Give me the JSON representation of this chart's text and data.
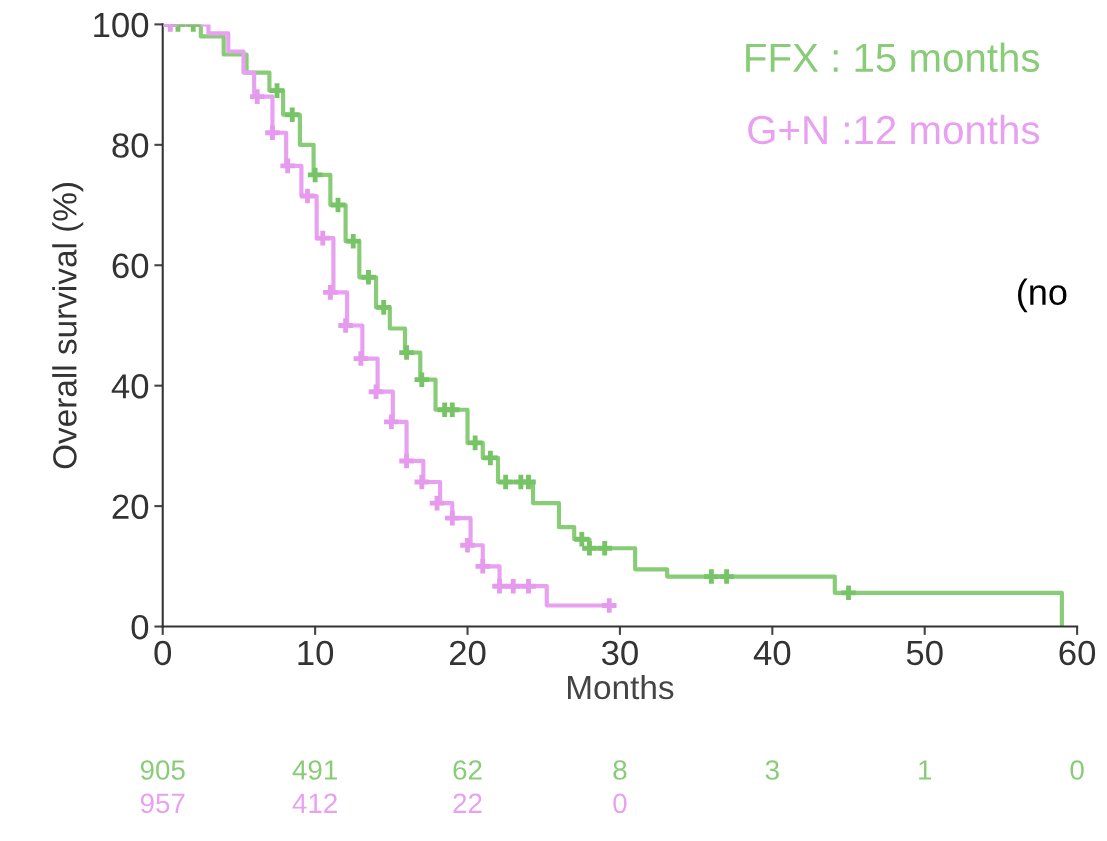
{
  "chart_data": {
    "type": "step",
    "xlabel": "Months",
    "ylabel": "Overall survival (%)",
    "xlim": [
      0,
      60
    ],
    "xticks": [
      0,
      10,
      20,
      30,
      40,
      50,
      60
    ],
    "ylim": [
      0,
      100
    ],
    "yticks": [
      0,
      20,
      40,
      60,
      80,
      100
    ],
    "grid": false,
    "legend": "top right",
    "series": [
      {
        "name": "FFX : 15 months",
        "color": "#88cc77",
        "marker": "none",
        "x": [
          0,
          2.5,
          4,
          5.5,
          7,
          7.9,
          9,
          9.9,
          11,
          12,
          12.9,
          14,
          14.9,
          15.9,
          16.9,
          17.9,
          20,
          21,
          22,
          24.3,
          26,
          27,
          28,
          31,
          33.1,
          44.1,
          59
        ],
        "values": [
          100,
          98,
          95,
          92,
          89,
          85,
          80,
          75,
          70,
          64,
          58,
          53,
          49.5,
          45.5,
          41,
          36,
          30.5,
          28,
          24,
          20.5,
          16.5,
          14.5,
          13,
          9.5,
          8.3,
          5.6,
          0
        ]
      },
      {
        "name": "G+N :12 months",
        "color": "#e8a0f0",
        "marker": "none",
        "x": [
          0,
          3,
          4.3,
          5.3,
          6,
          7.2,
          8.1,
          9.1,
          10.1,
          11.2,
          12.1,
          13.1,
          14.1,
          15.1,
          16,
          17.1,
          18.2,
          19,
          20.2,
          21,
          22.1,
          25.2,
          29.3
        ],
        "values": [
          100,
          98.5,
          95.5,
          92,
          88,
          82,
          76.5,
          71.5,
          64.5,
          55.5,
          50,
          44.5,
          39,
          34,
          27.5,
          24,
          20.5,
          18,
          13.5,
          10,
          6.7,
          3.5,
          3.5
        ]
      },
      {
        "type": "scatter",
        "color": "#77c466",
        "marker": "cross",
        "x": [
          1,
          2,
          7.5,
          8.5,
          10,
          11.5,
          12.5,
          13.5,
          14.5,
          16,
          17,
          18.5,
          19,
          20.5,
          21.5,
          22.5,
          23.5,
          24,
          27.5,
          28,
          29,
          36,
          37,
          45
        ],
        "values": [
          100,
          100,
          89,
          85,
          75,
          70,
          64,
          58,
          53,
          45.5,
          41,
          36,
          36,
          30.5,
          28,
          24,
          24,
          24,
          14.5,
          13,
          13,
          8.3,
          8.3,
          5.6
        ]
      },
      {
        "type": "scatter",
        "color": "#e59aee",
        "marker": "cross",
        "x": [
          0.5,
          6.2,
          7.2,
          8.2,
          9.5,
          10.5,
          11,
          12,
          13,
          14,
          15,
          16,
          17,
          18,
          19,
          20,
          21,
          22.1,
          23,
          24,
          29.3
        ],
        "values": [
          100,
          88,
          82,
          76.5,
          71.5,
          64.5,
          55.5,
          50,
          44.5,
          39,
          34,
          27.5,
          24,
          20.5,
          18,
          13.5,
          10,
          6.7,
          6.7,
          6.7,
          3.5
        ]
      }
    ],
    "annotations": [
      "(no",
      "905",
      "491",
      "62",
      "8",
      "3",
      "1",
      "0",
      "957",
      "412",
      "22",
      "0"
    ]
  }
}
